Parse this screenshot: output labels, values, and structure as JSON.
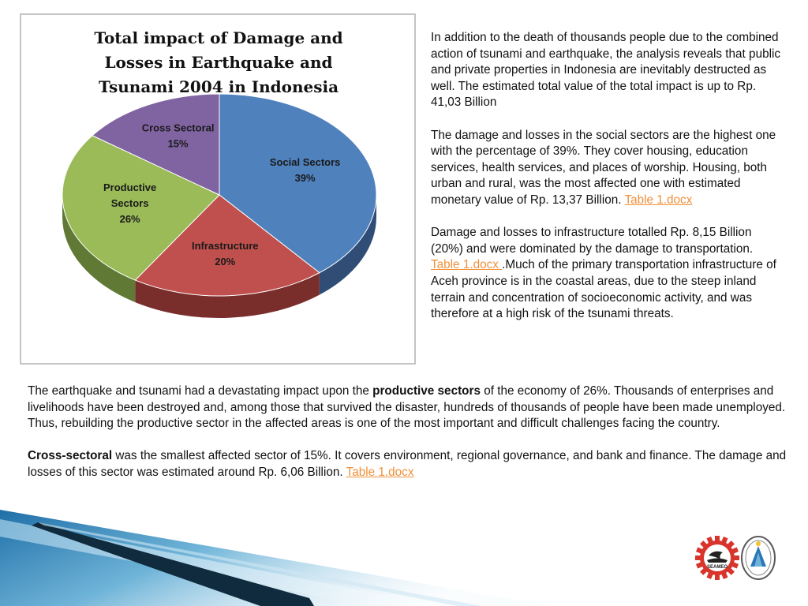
{
  "chart_data": {
    "type": "pie",
    "title": "Total impact of Damage and Losses in Earthquake and Tsunami 2004 in Indonesia",
    "title_lines": [
      "Total impact of Damage and",
      "Losses in Earthquake and",
      "Tsunami 2004 in Indonesia"
    ],
    "categories": [
      "Social Sectors",
      "Infrastructure",
      "Productive Sectors",
      "Cross Sectoral"
    ],
    "values": [
      39,
      20,
      26,
      15
    ],
    "value_labels": [
      "39%",
      "20%",
      "26%",
      "15%"
    ],
    "colors": [
      "#4f81bd",
      "#c0504d",
      "#9bbb59",
      "#8064a2"
    ],
    "side_colors": [
      "#2f4d75",
      "#7a2e2c",
      "#607a36",
      "#4f3d66"
    ],
    "legend": "none",
    "style": "3d-exploded-none"
  },
  "right_text": {
    "p1": "In addition to the death of thousands people due to the combined action of tsunami and earthquake, the analysis reveals that public and private properties in Indonesia are inevitably destructed as well. The estimated total value of the total impact is up to Rp. 41,03 Billion",
    "p2_a": "The damage and losses in the ",
    "p2_b": "social sectors",
    "p2_c": " are the highest one with the percentage of 39%. They cover housing, education services, health services, and places of worship.  Housing, both urban and rural, was the most affected one with estimated monetary value of Rp. 13,37 Billion. ",
    "p2_link": "Table 1.docx",
    "p3_a": "Damage and losses to ",
    "p3_b": "infrastructure",
    "p3_c": " totalled Rp. 8,15 Billion (20%) and were dominated by the damage to transportation. ",
    "p3_link": "Table 1.docx ",
    "p3_d": ".Much of the primary transportation infrastructure of Aceh province is in the coastal areas, due to the steep inland terrain and concentration of socioeconomic activity, and was therefore at a high risk of the tsunami threats."
  },
  "bottom_text": {
    "p4_a": "The earthquake and tsunami had a devastating impact upon the ",
    "p4_b": "productive sectors",
    "p4_c": " of the economy of 26%. Thousands of enterprises and livelihoods have been destroyed and, among those that survived the disaster, hundreds of thousands of people have been made unemployed. Thus, rebuilding the productive sector in the affected areas is one of the most important and difficult challenges facing the country.",
    "p5_a": "Cross-sectoral",
    "p5_b": " was the smallest affected sector of 15%. It covers environment, regional governance, and bank and finance. The damage and losses of this sector was estimated around Rp. 6,06 Billion. ",
    "p5_link": "Table 1.docx"
  },
  "logos": {
    "seameo_text": "SEAMEO",
    "gear_color": "#d8342c",
    "badge_color": "#2a76b8"
  }
}
